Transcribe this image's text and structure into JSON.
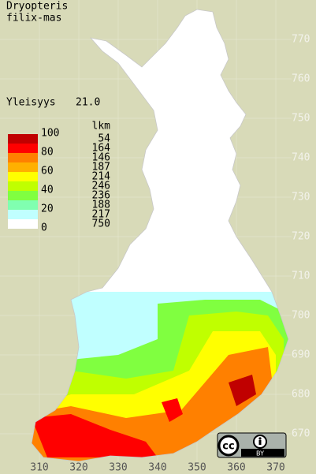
{
  "header": {
    "title_lines": [
      "Dryopteris",
      "filix-mas"
    ],
    "index_label": "Yleisyys",
    "index_value": "21.0"
  },
  "legend": {
    "scale_labels": [
      "100",
      "80",
      "60",
      "40",
      "20",
      "0"
    ],
    "count_header": "lkm",
    "counts": [
      "54",
      "164",
      "146",
      "187",
      "214",
      "246",
      "236",
      "188",
      "217",
      "750"
    ],
    "colors": [
      "#c00000",
      "#ff0000",
      "#ff8000",
      "#ffb000",
      "#ffff00",
      "#c0ff00",
      "#80ff40",
      "#80ffb0",
      "#c0ffff",
      "#ffffff"
    ]
  },
  "axes": {
    "north": [
      770,
      760,
      750,
      740,
      730,
      720,
      710,
      700,
      690,
      680,
      670
    ],
    "east": [
      310,
      320,
      330,
      340,
      350,
      360,
      370
    ]
  },
  "license": "BY"
}
